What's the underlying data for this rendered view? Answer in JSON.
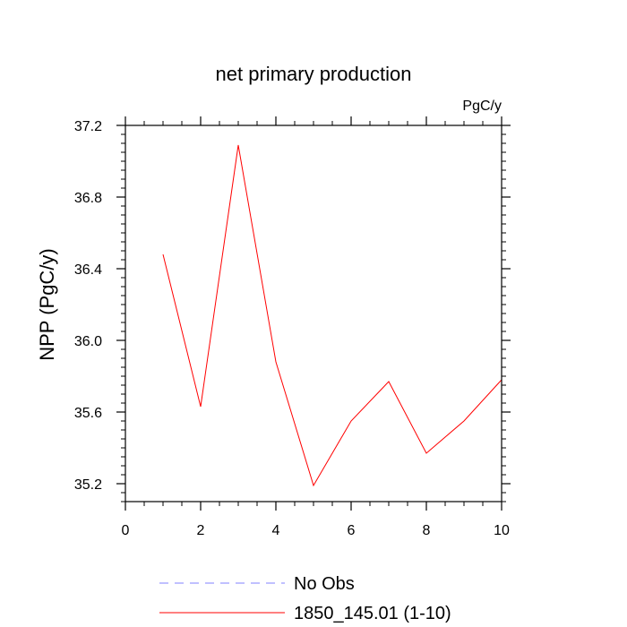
{
  "chart_data": {
    "type": "line",
    "title": "net primary production",
    "units_label": "PgC/y",
    "xlabel": "",
    "ylabel": "NPP  (PgC/y)",
    "xlim": [
      0,
      10
    ],
    "ylim": [
      35.1,
      37.2
    ],
    "x_ticks": [
      0,
      2,
      4,
      6,
      8,
      10
    ],
    "y_ticks": [
      35.2,
      35.6,
      36.0,
      36.4,
      36.8,
      37.2
    ],
    "y_tick_labels": [
      "35.2",
      "35.6",
      "36.0",
      "36.4",
      "36.8",
      "37.2"
    ],
    "grid": false,
    "legend_position": "bottom",
    "series": [
      {
        "name": "1850_145.01 (1-10)",
        "color": "#ff0000",
        "style": "solid",
        "x": [
          1,
          2,
          3,
          4,
          5,
          6,
          7,
          8,
          9,
          10
        ],
        "y": [
          36.48,
          35.63,
          37.09,
          35.88,
          35.19,
          35.55,
          35.77,
          35.37,
          35.55,
          35.78
        ]
      }
    ],
    "legend": [
      {
        "label": "No Obs",
        "color": "#8080ff",
        "style": "dashed"
      },
      {
        "label": "1850_145.01 (1-10)",
        "color": "#ff0000",
        "style": "solid"
      }
    ]
  }
}
